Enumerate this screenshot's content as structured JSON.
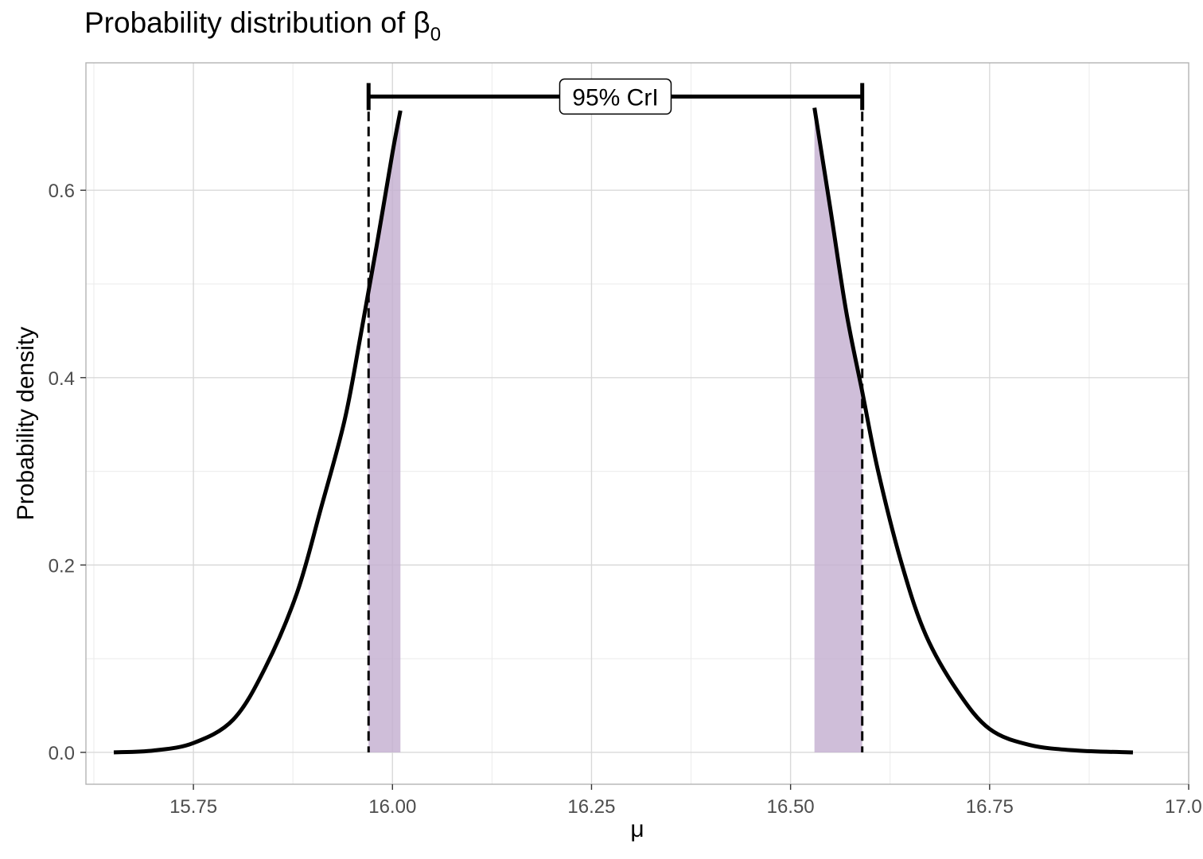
{
  "chart_data": {
    "type": "area",
    "title_text": "Probability distribution of ",
    "title_symbol": "β",
    "title_subscript": "0",
    "xlabel": "μ",
    "ylabel": "Probability density",
    "xlim": [
      15.615,
      17.0
    ],
    "ylim": [
      -0.034,
      0.736
    ],
    "x_ticks": [
      15.75,
      16.0,
      16.25,
      16.5,
      16.75,
      17.0
    ],
    "x_tick_labels": [
      "15.75",
      "16.00",
      "16.25",
      "16.50",
      "16.75",
      "17.0"
    ],
    "y_ticks": [
      0.0,
      0.2,
      0.4,
      0.6
    ],
    "y_tick_labels": [
      "0.0",
      "0.2",
      "0.4",
      "0.6"
    ],
    "grid": true,
    "series": [
      {
        "line_color": "#000000",
        "left_branch": [
          [
            15.65,
            0.0
          ],
          [
            15.7,
            0.002
          ],
          [
            15.75,
            0.01
          ],
          [
            15.8,
            0.035
          ],
          [
            15.84,
            0.09
          ],
          [
            15.88,
            0.17
          ],
          [
            15.91,
            0.26
          ],
          [
            15.94,
            0.355
          ],
          [
            15.96,
            0.445
          ],
          [
            15.98,
            0.54
          ],
          [
            16.0,
            0.64
          ],
          [
            16.01,
            0.685
          ]
        ],
        "right_branch": [
          [
            16.53,
            0.688
          ],
          [
            16.55,
            0.58
          ],
          [
            16.57,
            0.47
          ],
          [
            16.59,
            0.385
          ],
          [
            16.61,
            0.3
          ],
          [
            16.64,
            0.2
          ],
          [
            16.67,
            0.125
          ],
          [
            16.71,
            0.065
          ],
          [
            16.75,
            0.025
          ],
          [
            16.8,
            0.008
          ],
          [
            16.86,
            0.002
          ],
          [
            16.93,
            0.0
          ]
        ]
      }
    ],
    "shaded_regions": [
      {
        "x": [
          15.97,
          16.01
        ],
        "color": "#c3aed0"
      },
      {
        "x": [
          16.53,
          16.59
        ],
        "color": "#c3aed0"
      }
    ],
    "credible_interval": {
      "label": "95% CrI",
      "lower": 15.97,
      "upper": 16.59,
      "y": 0.7
    }
  }
}
